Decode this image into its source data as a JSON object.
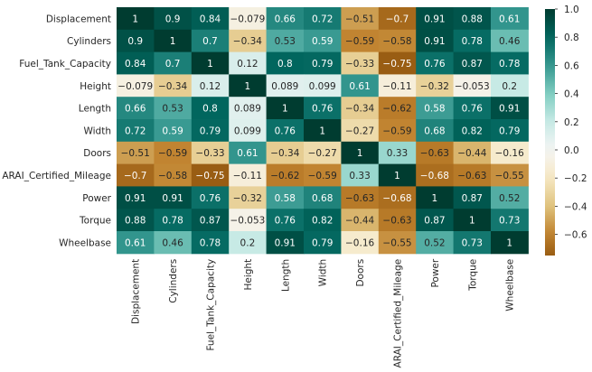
{
  "chart_data": {
    "type": "heatmap",
    "labels": [
      "Displacement",
      "Cylinders",
      "Fuel_Tank_Capacity",
      "Height",
      "Length",
      "Width",
      "Doors",
      "ARAI_Certified_Mileage",
      "Power",
      "Torque",
      "Wheelbase"
    ],
    "matrix": [
      [
        1,
        0.9,
        0.84,
        -0.079,
        0.66,
        0.72,
        -0.51,
        -0.7,
        0.91,
        0.88,
        0.61
      ],
      [
        0.9,
        1,
        0.7,
        -0.34,
        0.53,
        0.59,
        -0.59,
        -0.58,
        0.91,
        0.78,
        0.46
      ],
      [
        0.84,
        0.7,
        1,
        0.12,
        0.8,
        0.79,
        -0.33,
        -0.75,
        0.76,
        0.87,
        0.78
      ],
      [
        -0.079,
        -0.34,
        0.12,
        1,
        0.089,
        0.099,
        0.61,
        -0.11,
        -0.32,
        -0.053,
        0.2
      ],
      [
        0.66,
        0.53,
        0.8,
        0.089,
        1,
        0.76,
        -0.34,
        -0.62,
        0.58,
        0.76,
        0.91
      ],
      [
        0.72,
        0.59,
        0.79,
        0.099,
        0.76,
        1,
        -0.27,
        -0.59,
        0.68,
        0.82,
        0.79
      ],
      [
        -0.51,
        -0.59,
        -0.33,
        0.61,
        -0.34,
        -0.27,
        1,
        0.33,
        -0.63,
        -0.44,
        -0.16
      ],
      [
        -0.7,
        -0.58,
        -0.75,
        -0.11,
        -0.62,
        -0.59,
        0.33,
        1,
        -0.68,
        -0.63,
        -0.55
      ],
      [
        0.91,
        0.91,
        0.76,
        -0.32,
        0.58,
        0.68,
        -0.63,
        -0.68,
        1,
        0.87,
        0.52
      ],
      [
        0.88,
        0.78,
        0.87,
        -0.053,
        0.76,
        0.82,
        -0.44,
        -0.63,
        0.87,
        1,
        0.73
      ],
      [
        0.61,
        0.46,
        0.78,
        0.2,
        0.91,
        0.79,
        -0.16,
        -0.55,
        0.52,
        0.73,
        1
      ]
    ],
    "colorbar": {
      "colormap": "BrBG",
      "range": [
        -0.75,
        1
      ],
      "ticks": [
        "1.0",
        "0.8",
        "0.6",
        "0.4",
        "0.2",
        "0.0",
        "−0.2",
        "−0.4",
        "−0.6"
      ],
      "tick_values": [
        1.0,
        0.8,
        0.6,
        0.4,
        0.2,
        0.0,
        -0.2,
        -0.4,
        -0.6
      ]
    }
  }
}
